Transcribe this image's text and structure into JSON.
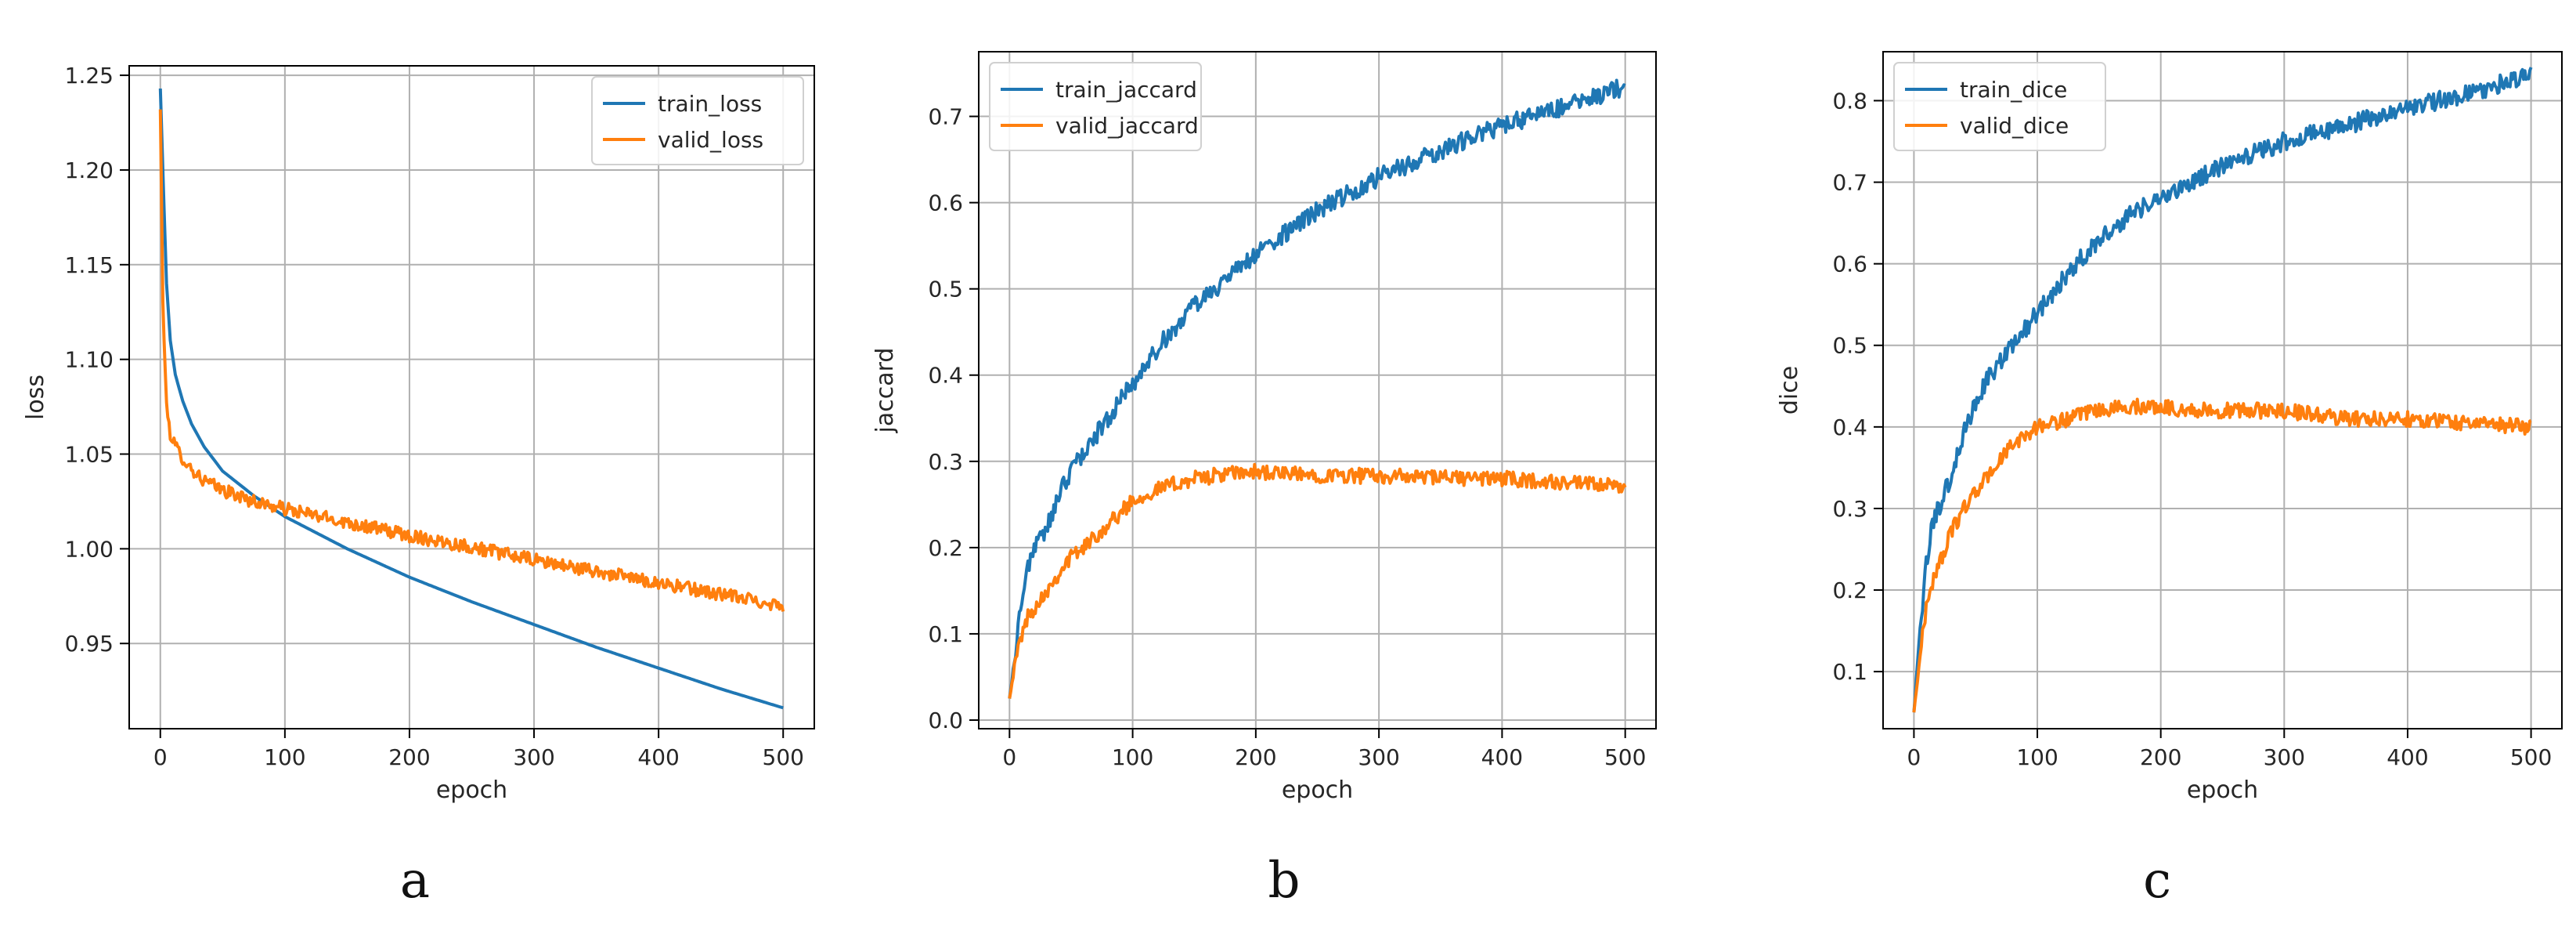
{
  "colors": {
    "train": "#1f77b4",
    "valid": "#ff7f0e",
    "grid": "#b0b0b0",
    "axis": "#000000"
  },
  "chart_data": [
    {
      "panel": "a",
      "type": "line",
      "xlabel": "epoch",
      "ylabel": "loss",
      "xlim": [
        -25,
        525
      ],
      "ylim": [
        0.905,
        1.255
      ],
      "xticks": [
        0,
        100,
        200,
        300,
        400,
        500
      ],
      "yticks": [
        0.95,
        1.0,
        1.05,
        1.1,
        1.15,
        1.2,
        1.25
      ],
      "ytick_labels": [
        "0.95",
        "1.00",
        "1.05",
        "1.10",
        "1.15",
        "1.20",
        "1.25"
      ],
      "grid": true,
      "legend": "top-right",
      "series": [
        {
          "name": "train_loss",
          "color": "#1f77b4",
          "x": [
            0,
            2,
            5,
            8,
            12,
            18,
            25,
            35,
            50,
            75,
            100,
            150,
            200,
            250,
            300,
            350,
            400,
            450,
            500
          ],
          "y": [
            1.243,
            1.2,
            1.14,
            1.11,
            1.092,
            1.078,
            1.066,
            1.054,
            1.041,
            1.028,
            1.017,
            1.0,
            0.985,
            0.972,
            0.96,
            0.948,
            0.937,
            0.926,
            0.916
          ]
        },
        {
          "name": "valid_loss",
          "color": "#ff7f0e",
          "x": [
            0,
            2,
            5,
            8,
            12,
            18,
            25,
            35,
            50,
            75,
            100,
            150,
            200,
            250,
            300,
            350,
            400,
            450,
            500
          ],
          "y": [
            1.232,
            1.13,
            1.075,
            1.061,
            1.054,
            1.048,
            1.042,
            1.036,
            1.031,
            1.025,
            1.021,
            1.014,
            1.007,
            1.001,
            0.994,
            0.988,
            0.982,
            0.976,
            0.97
          ]
        }
      ]
    },
    {
      "panel": "b",
      "type": "line",
      "xlabel": "epoch",
      "ylabel": "jaccard",
      "xlim": [
        -25,
        525
      ],
      "ylim": [
        -0.01,
        0.775
      ],
      "xticks": [
        0,
        100,
        200,
        300,
        400,
        500
      ],
      "yticks": [
        0.0,
        0.1,
        0.2,
        0.3,
        0.4,
        0.5,
        0.6,
        0.7
      ],
      "ytick_labels": [
        "0.0",
        "0.1",
        "0.2",
        "0.3",
        "0.4",
        "0.5",
        "0.6",
        "0.7"
      ],
      "grid": true,
      "legend": "top-left",
      "series": [
        {
          "name": "train_jaccard",
          "color": "#1f77b4",
          "x": [
            0,
            5,
            10,
            15,
            20,
            30,
            40,
            50,
            60,
            75,
            90,
            100,
            125,
            150,
            175,
            200,
            250,
            300,
            350,
            400,
            450,
            500
          ],
          "y": [
            0.025,
            0.08,
            0.14,
            0.18,
            0.2,
            0.22,
            0.26,
            0.29,
            0.31,
            0.34,
            0.37,
            0.39,
            0.44,
            0.48,
            0.51,
            0.54,
            0.59,
            0.63,
            0.66,
            0.69,
            0.71,
            0.735
          ]
        },
        {
          "name": "valid_jaccard",
          "color": "#ff7f0e",
          "x": [
            0,
            5,
            10,
            15,
            20,
            30,
            40,
            50,
            60,
            75,
            90,
            100,
            125,
            150,
            175,
            200,
            225,
            250,
            300,
            350,
            400,
            450,
            500
          ],
          "y": [
            0.025,
            0.07,
            0.1,
            0.12,
            0.13,
            0.15,
            0.17,
            0.19,
            0.2,
            0.22,
            0.24,
            0.255,
            0.27,
            0.28,
            0.285,
            0.288,
            0.285,
            0.284,
            0.283,
            0.281,
            0.28,
            0.275,
            0.27
          ]
        }
      ]
    },
    {
      "panel": "c",
      "type": "line",
      "xlabel": "epoch",
      "ylabel": "dice",
      "xlim": [
        -25,
        525
      ],
      "ylim": [
        0.03,
        0.86
      ],
      "xticks": [
        0,
        100,
        200,
        300,
        400,
        500
      ],
      "yticks": [
        0.1,
        0.2,
        0.3,
        0.4,
        0.5,
        0.6,
        0.7,
        0.8
      ],
      "ytick_labels": [
        "0.1",
        "0.2",
        "0.3",
        "0.4",
        "0.5",
        "0.6",
        "0.7",
        "0.8"
      ],
      "grid": true,
      "legend": "top-left",
      "series": [
        {
          "name": "train_dice",
          "color": "#1f77b4",
          "x": [
            0,
            5,
            10,
            15,
            20,
            30,
            40,
            50,
            60,
            75,
            90,
            100,
            125,
            150,
            175,
            200,
            250,
            300,
            350,
            400,
            450,
            500
          ],
          "y": [
            0.05,
            0.15,
            0.23,
            0.28,
            0.3,
            0.34,
            0.39,
            0.43,
            0.46,
            0.49,
            0.52,
            0.54,
            0.59,
            0.63,
            0.66,
            0.68,
            0.72,
            0.75,
            0.77,
            0.79,
            0.81,
            0.83
          ]
        },
        {
          "name": "valid_dice",
          "color": "#ff7f0e",
          "x": [
            0,
            5,
            10,
            15,
            20,
            30,
            40,
            50,
            60,
            75,
            90,
            100,
            125,
            150,
            175,
            200,
            225,
            250,
            300,
            350,
            400,
            450,
            500
          ],
          "y": [
            0.05,
            0.12,
            0.18,
            0.21,
            0.23,
            0.27,
            0.3,
            0.32,
            0.34,
            0.37,
            0.39,
            0.4,
            0.41,
            0.42,
            0.425,
            0.425,
            0.42,
            0.42,
            0.42,
            0.41,
            0.41,
            0.405,
            0.4
          ]
        }
      ]
    }
  ]
}
